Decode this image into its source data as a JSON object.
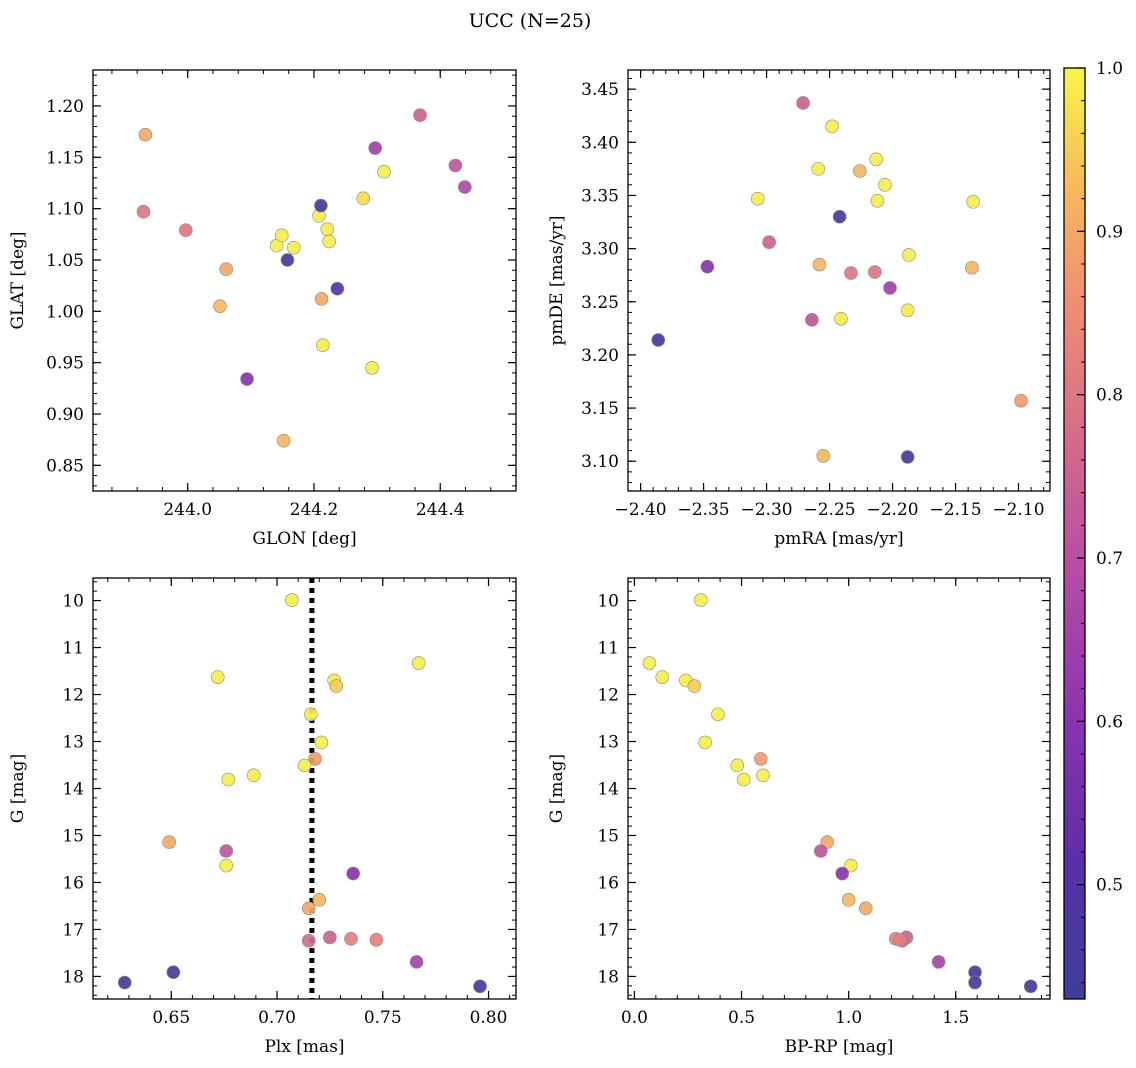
{
  "title": "UCC (N=25)",
  "colorbar": {
    "range": [
      0.43,
      1.0
    ],
    "ticks": [
      0.5,
      0.6,
      0.7,
      0.8,
      0.9,
      1.0
    ],
    "tick_labels": [
      "0.5",
      "0.6",
      "0.7",
      "0.8",
      "0.9",
      "1.0"
    ],
    "colormap": "plasma"
  },
  "chart_data": [
    {
      "type": "scatter",
      "xlabel": "GLON [deg]",
      "ylabel": "GLAT [deg]",
      "xlim": [
        243.85,
        244.52
      ],
      "ylim": [
        0.825,
        1.235
      ],
      "xticks": [
        244.0,
        244.2,
        244.4
      ],
      "xtick_labels": [
        "244.0",
        "244.2",
        "244.4"
      ],
      "yticks": [
        0.85,
        0.9,
        0.95,
        1.0,
        1.05,
        1.1,
        1.15,
        1.2
      ],
      "ytick_labels": [
        "0.85",
        "0.90",
        "0.95",
        "1.00",
        "1.05",
        "1.10",
        "1.15",
        "1.20"
      ],
      "points": [
        {
          "x": 243.933,
          "y": 1.172,
          "c": 0.9
        },
        {
          "x": 243.93,
          "y": 1.097,
          "c": 0.8
        },
        {
          "x": 243.997,
          "y": 1.079,
          "c": 0.8
        },
        {
          "x": 244.061,
          "y": 1.041,
          "c": 0.9
        },
        {
          "x": 244.051,
          "y": 1.005,
          "c": 0.93
        },
        {
          "x": 244.094,
          "y": 0.934,
          "c": 0.6
        },
        {
          "x": 244.141,
          "y": 1.064,
          "c": 0.99
        },
        {
          "x": 244.149,
          "y": 1.074,
          "c": 0.99
        },
        {
          "x": 244.158,
          "y": 1.05,
          "c": 0.45
        },
        {
          "x": 244.168,
          "y": 1.062,
          "c": 0.99
        },
        {
          "x": 244.152,
          "y": 0.874,
          "c": 0.92
        },
        {
          "x": 244.208,
          "y": 1.093,
          "c": 0.99
        },
        {
          "x": 244.211,
          "y": 1.103,
          "c": 0.45
        },
        {
          "x": 244.221,
          "y": 1.08,
          "c": 0.99
        },
        {
          "x": 244.224,
          "y": 1.068,
          "c": 0.99
        },
        {
          "x": 244.212,
          "y": 1.012,
          "c": 0.9
        },
        {
          "x": 244.214,
          "y": 0.967,
          "c": 0.99
        },
        {
          "x": 244.237,
          "y": 1.022,
          "c": 0.5
        },
        {
          "x": 244.278,
          "y": 1.11,
          "c": 0.97
        },
        {
          "x": 244.297,
          "y": 1.159,
          "c": 0.65
        },
        {
          "x": 244.292,
          "y": 0.945,
          "c": 0.99
        },
        {
          "x": 244.311,
          "y": 1.136,
          "c": 0.99
        },
        {
          "x": 244.368,
          "y": 1.191,
          "c": 0.75
        },
        {
          "x": 244.424,
          "y": 1.142,
          "c": 0.72
        },
        {
          "x": 244.439,
          "y": 1.121,
          "c": 0.68
        }
      ]
    },
    {
      "type": "scatter",
      "xlabel": "pmRA [mas/yr]",
      "ylabel": "pmDE [mas/yr]",
      "xlim": [
        -2.41,
        -2.075
      ],
      "ylim": [
        3.072,
        3.468
      ],
      "xticks": [
        -2.4,
        -2.35,
        -2.3,
        -2.25,
        -2.2,
        -2.15,
        -2.1
      ],
      "xtick_labels": [
        "−2.40",
        "−2.35",
        "−2.30",
        "−2.25",
        "−2.20",
        "−2.15",
        "−2.10"
      ],
      "yticks": [
        3.1,
        3.15,
        3.2,
        3.25,
        3.3,
        3.35,
        3.4,
        3.45
      ],
      "ytick_labels": [
        "3.10",
        "3.15",
        "3.20",
        "3.25",
        "3.30",
        "3.35",
        "3.40",
        "3.45"
      ],
      "points": [
        {
          "x": -2.386,
          "y": 3.214,
          "c": 0.45
        },
        {
          "x": -2.347,
          "y": 3.283,
          "c": 0.6
        },
        {
          "x": -2.307,
          "y": 3.347,
          "c": 0.99
        },
        {
          "x": -2.298,
          "y": 3.306,
          "c": 0.75
        },
        {
          "x": -2.271,
          "y": 3.437,
          "c": 0.75
        },
        {
          "x": -2.264,
          "y": 3.233,
          "c": 0.72
        },
        {
          "x": -2.259,
          "y": 3.375,
          "c": 0.99
        },
        {
          "x": -2.258,
          "y": 3.285,
          "c": 0.92
        },
        {
          "x": -2.255,
          "y": 3.105,
          "c": 0.93
        },
        {
          "x": -2.248,
          "y": 3.415,
          "c": 0.99
        },
        {
          "x": -2.242,
          "y": 3.33,
          "c": 0.45
        },
        {
          "x": -2.241,
          "y": 3.234,
          "c": 0.99
        },
        {
          "x": -2.233,
          "y": 3.277,
          "c": 0.8
        },
        {
          "x": -2.226,
          "y": 3.373,
          "c": 0.92
        },
        {
          "x": -2.214,
          "y": 3.278,
          "c": 0.8
        },
        {
          "x": -2.213,
          "y": 3.384,
          "c": 0.99
        },
        {
          "x": -2.212,
          "y": 3.345,
          "c": 0.99
        },
        {
          "x": -2.206,
          "y": 3.36,
          "c": 0.99
        },
        {
          "x": -2.202,
          "y": 3.263,
          "c": 0.65
        },
        {
          "x": -2.188,
          "y": 3.104,
          "c": 0.45
        },
        {
          "x": -2.188,
          "y": 3.242,
          "c": 0.99
        },
        {
          "x": -2.187,
          "y": 3.294,
          "c": 0.99
        },
        {
          "x": -2.136,
          "y": 3.344,
          "c": 0.99
        },
        {
          "x": -2.137,
          "y": 3.282,
          "c": 0.92
        },
        {
          "x": -2.098,
          "y": 3.157,
          "c": 0.88
        }
      ]
    },
    {
      "type": "scatter",
      "xlabel": "Plx [mas]",
      "ylabel": "G [mag]",
      "xlim": [
        0.613,
        0.813
      ],
      "ylim": [
        18.48,
        9.52
      ],
      "xticks": [
        0.65,
        0.7,
        0.75,
        0.8
      ],
      "xtick_labels": [
        "0.65",
        "0.70",
        "0.75",
        "0.80"
      ],
      "yticks": [
        10,
        11,
        12,
        13,
        14,
        15,
        16,
        17,
        18
      ],
      "ytick_labels": [
        "10",
        "11",
        "12",
        "13",
        "14",
        "15",
        "16",
        "17",
        "18"
      ],
      "vline": {
        "x": 0.7165,
        "style": "dotted"
      },
      "points": [
        {
          "x": 0.707,
          "y": 9.99,
          "c": 0.99
        },
        {
          "x": 0.672,
          "y": 11.63,
          "c": 0.99
        },
        {
          "x": 0.767,
          "y": 11.33,
          "c": 0.99
        },
        {
          "x": 0.727,
          "y": 11.7,
          "c": 0.99
        },
        {
          "x": 0.728,
          "y": 11.82,
          "c": 0.95
        },
        {
          "x": 0.716,
          "y": 12.42,
          "c": 0.99
        },
        {
          "x": 0.721,
          "y": 13.02,
          "c": 0.99
        },
        {
          "x": 0.718,
          "y": 13.37,
          "c": 0.88
        },
        {
          "x": 0.713,
          "y": 13.51,
          "c": 0.99
        },
        {
          "x": 0.689,
          "y": 13.72,
          "c": 0.99
        },
        {
          "x": 0.677,
          "y": 13.81,
          "c": 0.99
        },
        {
          "x": 0.649,
          "y": 15.14,
          "c": 0.9
        },
        {
          "x": 0.676,
          "y": 15.33,
          "c": 0.72
        },
        {
          "x": 0.676,
          "y": 15.64,
          "c": 0.99
        },
        {
          "x": 0.736,
          "y": 15.81,
          "c": 0.6
        },
        {
          "x": 0.72,
          "y": 16.37,
          "c": 0.93
        },
        {
          "x": 0.715,
          "y": 16.55,
          "c": 0.9
        },
        {
          "x": 0.725,
          "y": 17.17,
          "c": 0.75
        },
        {
          "x": 0.715,
          "y": 17.24,
          "c": 0.78
        },
        {
          "x": 0.735,
          "y": 17.2,
          "c": 0.82
        },
        {
          "x": 0.747,
          "y": 17.22,
          "c": 0.82
        },
        {
          "x": 0.766,
          "y": 17.69,
          "c": 0.66
        },
        {
          "x": 0.651,
          "y": 17.91,
          "c": 0.45
        },
        {
          "x": 0.628,
          "y": 18.13,
          "c": 0.45
        },
        {
          "x": 0.796,
          "y": 18.21,
          "c": 0.45
        }
      ]
    },
    {
      "type": "scatter",
      "xlabel": "BP-RP [mag]",
      "ylabel": "G [mag]",
      "xlim": [
        -0.03,
        1.94
      ],
      "ylim": [
        18.48,
        9.52
      ],
      "xticks": [
        0.0,
        0.5,
        1.0,
        1.5
      ],
      "xtick_labels": [
        "0.0",
        "0.5",
        "1.0",
        "1.5"
      ],
      "yticks": [
        10,
        11,
        12,
        13,
        14,
        15,
        16,
        17,
        18
      ],
      "ytick_labels": [
        "10",
        "11",
        "12",
        "13",
        "14",
        "15",
        "16",
        "17",
        "18"
      ],
      "points": [
        {
          "x": 0.31,
          "y": 9.99,
          "c": 0.99
        },
        {
          "x": 0.07,
          "y": 11.33,
          "c": 0.99
        },
        {
          "x": 0.13,
          "y": 11.63,
          "c": 0.99
        },
        {
          "x": 0.24,
          "y": 11.7,
          "c": 0.99
        },
        {
          "x": 0.28,
          "y": 11.82,
          "c": 0.95
        },
        {
          "x": 0.39,
          "y": 12.42,
          "c": 0.99
        },
        {
          "x": 0.33,
          "y": 13.02,
          "c": 0.99
        },
        {
          "x": 0.59,
          "y": 13.37,
          "c": 0.88
        },
        {
          "x": 0.48,
          "y": 13.51,
          "c": 0.99
        },
        {
          "x": 0.6,
          "y": 13.72,
          "c": 0.99
        },
        {
          "x": 0.51,
          "y": 13.81,
          "c": 0.99
        },
        {
          "x": 0.9,
          "y": 15.14,
          "c": 0.9
        },
        {
          "x": 0.87,
          "y": 15.33,
          "c": 0.72
        },
        {
          "x": 1.01,
          "y": 15.64,
          "c": 0.99
        },
        {
          "x": 0.97,
          "y": 15.81,
          "c": 0.6
        },
        {
          "x": 1.0,
          "y": 16.37,
          "c": 0.93
        },
        {
          "x": 1.08,
          "y": 16.55,
          "c": 0.9
        },
        {
          "x": 1.27,
          "y": 17.17,
          "c": 0.75
        },
        {
          "x": 1.25,
          "y": 17.24,
          "c": 0.78
        },
        {
          "x": 1.22,
          "y": 17.2,
          "c": 0.82
        },
        {
          "x": 1.24,
          "y": 17.22,
          "c": 0.82
        },
        {
          "x": 1.42,
          "y": 17.69,
          "c": 0.66
        },
        {
          "x": 1.59,
          "y": 17.91,
          "c": 0.45
        },
        {
          "x": 1.59,
          "y": 18.13,
          "c": 0.45
        },
        {
          "x": 1.85,
          "y": 18.21,
          "c": 0.45
        }
      ]
    }
  ]
}
